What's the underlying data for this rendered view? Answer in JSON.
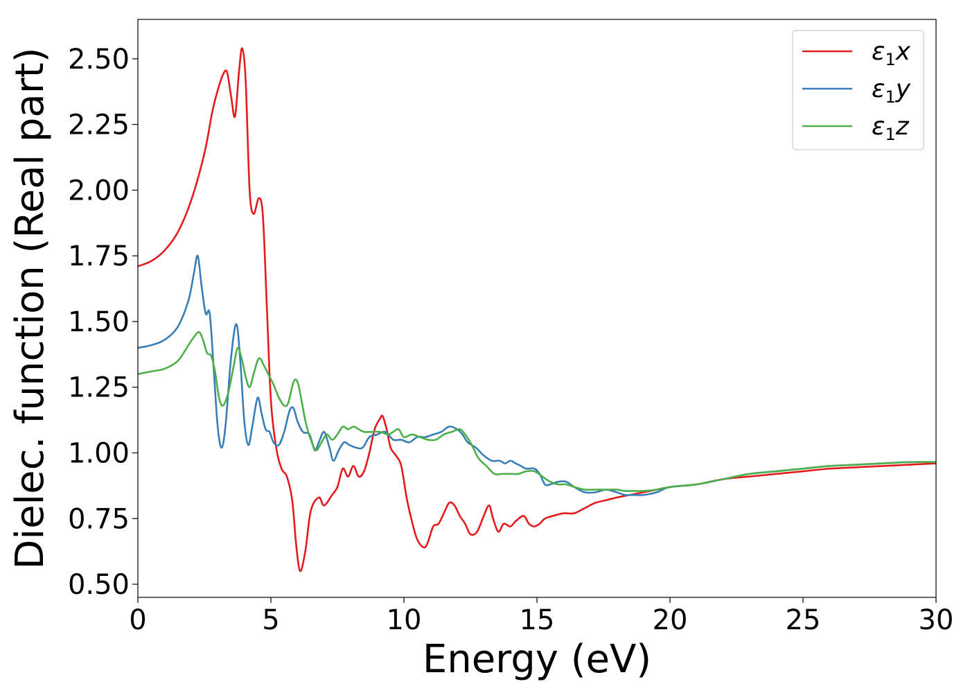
{
  "chart_data": {
    "type": "line",
    "title": "",
    "xlabel": "Energy (eV)",
    "ylabel": "Dielec. function (Real part)",
    "xlim": [
      0,
      30
    ],
    "ylim": [
      0.45,
      2.65
    ],
    "xticks": [
      0,
      5,
      10,
      15,
      20,
      25,
      30
    ],
    "yticks": [
      0.5,
      0.75,
      1.0,
      1.25,
      1.5,
      1.75,
      2.0,
      2.25,
      2.5
    ],
    "xtick_labels": [
      "0",
      "5",
      "10",
      "15",
      "20",
      "25",
      "30"
    ],
    "ytick_labels": [
      "0.50",
      "0.75",
      "1.00",
      "1.25",
      "1.50",
      "1.75",
      "2.00",
      "2.25",
      "2.50"
    ],
    "grid": false,
    "legend_position": "top-right",
    "series": [
      {
        "name": "ε₁x",
        "legend_base": "ε",
        "legend_sub": "1",
        "legend_suffix": "x",
        "color": "#e41a1c",
        "x": [
          0,
          0.5,
          1.0,
          1.5,
          2.0,
          2.5,
          2.8,
          3.0,
          3.2,
          3.35,
          3.5,
          3.65,
          3.8,
          3.92,
          4.05,
          4.2,
          4.35,
          4.55,
          4.7,
          4.85,
          5.0,
          5.2,
          5.4,
          5.6,
          5.8,
          5.95,
          6.1,
          6.3,
          6.5,
          6.8,
          7.0,
          7.3,
          7.5,
          7.7,
          7.9,
          8.1,
          8.3,
          8.5,
          8.7,
          8.9,
          9.1,
          9.2,
          9.35,
          9.5,
          9.7,
          9.9,
          10.1,
          10.3,
          10.5,
          10.75,
          10.9,
          11.1,
          11.3,
          11.5,
          11.7,
          11.9,
          12.1,
          12.3,
          12.5,
          12.75,
          13.0,
          13.2,
          13.35,
          13.55,
          13.75,
          14.0,
          14.2,
          14.5,
          14.7,
          14.9,
          15.1,
          15.3,
          15.6,
          16.0,
          16.4,
          16.8,
          17.2,
          17.6,
          18.0,
          18.5,
          19.0,
          19.5,
          20.0,
          21.0,
          22.0,
          23.0,
          24.0,
          25.0,
          26.0,
          27.0,
          28.0,
          29.0,
          30.0
        ],
        "y": [
          1.71,
          1.73,
          1.77,
          1.84,
          1.96,
          2.14,
          2.3,
          2.38,
          2.44,
          2.45,
          2.36,
          2.28,
          2.45,
          2.54,
          2.42,
          2.0,
          1.91,
          1.97,
          1.9,
          1.55,
          1.2,
          1.02,
          0.94,
          0.91,
          0.82,
          0.65,
          0.55,
          0.63,
          0.78,
          0.83,
          0.8,
          0.84,
          0.87,
          0.94,
          0.91,
          0.95,
          0.91,
          0.93,
          1.0,
          1.09,
          1.13,
          1.14,
          1.09,
          1.02,
          0.99,
          0.95,
          0.83,
          0.74,
          0.67,
          0.64,
          0.66,
          0.72,
          0.73,
          0.77,
          0.81,
          0.8,
          0.76,
          0.73,
          0.69,
          0.7,
          0.76,
          0.8,
          0.75,
          0.7,
          0.73,
          0.72,
          0.74,
          0.76,
          0.73,
          0.72,
          0.73,
          0.75,
          0.76,
          0.77,
          0.77,
          0.79,
          0.81,
          0.82,
          0.83,
          0.84,
          0.85,
          0.86,
          0.87,
          0.88,
          0.9,
          0.91,
          0.92,
          0.93,
          0.94,
          0.945,
          0.95,
          0.955,
          0.96
        ]
      },
      {
        "name": "ε₁y",
        "legend_base": "ε",
        "legend_sub": "1",
        "legend_suffix": "y",
        "color": "#377eb8",
        "x": [
          0,
          0.5,
          1.0,
          1.5,
          1.9,
          2.1,
          2.25,
          2.4,
          2.55,
          2.7,
          2.85,
          3.0,
          3.15,
          3.3,
          3.5,
          3.7,
          3.85,
          4.0,
          4.15,
          4.3,
          4.5,
          4.65,
          4.8,
          4.95,
          5.1,
          5.3,
          5.5,
          5.7,
          5.85,
          6.0,
          6.2,
          6.45,
          6.65,
          6.8,
          7.0,
          7.2,
          7.35,
          7.55,
          7.75,
          7.95,
          8.2,
          8.45,
          8.7,
          9.0,
          9.3,
          9.6,
          9.9,
          10.2,
          10.5,
          10.8,
          11.1,
          11.4,
          11.7,
          12.0,
          12.2,
          12.4,
          12.7,
          13.0,
          13.3,
          13.6,
          13.8,
          14.0,
          14.2,
          14.4,
          14.6,
          14.9,
          15.1,
          15.3,
          15.5,
          15.8,
          16.1,
          16.4,
          16.8,
          17.2,
          17.6,
          18.0,
          18.3,
          18.6,
          19.0,
          19.5,
          20.0,
          21.0,
          22.0,
          23.0,
          24.0,
          25.0,
          26.0,
          27.0,
          28.0,
          29.0,
          30.0
        ],
        "y": [
          1.4,
          1.41,
          1.43,
          1.48,
          1.58,
          1.68,
          1.75,
          1.63,
          1.53,
          1.53,
          1.32,
          1.1,
          1.02,
          1.11,
          1.36,
          1.49,
          1.35,
          1.12,
          1.03,
          1.1,
          1.21,
          1.15,
          1.09,
          1.08,
          1.04,
          1.03,
          1.08,
          1.16,
          1.17,
          1.12,
          1.08,
          1.07,
          1.01,
          1.04,
          1.08,
          1.02,
          0.97,
          1.01,
          1.04,
          1.03,
          1.02,
          1.02,
          1.06,
          1.07,
          1.08,
          1.05,
          1.05,
          1.04,
          1.06,
          1.06,
          1.07,
          1.08,
          1.1,
          1.09,
          1.07,
          1.04,
          1.02,
          0.99,
          0.97,
          0.97,
          0.96,
          0.97,
          0.96,
          0.95,
          0.94,
          0.94,
          0.92,
          0.88,
          0.88,
          0.89,
          0.89,
          0.87,
          0.85,
          0.85,
          0.86,
          0.85,
          0.84,
          0.84,
          0.84,
          0.85,
          0.87,
          0.88,
          0.9,
          0.92,
          0.93,
          0.94,
          0.95,
          0.955,
          0.96,
          0.965,
          0.965
        ]
      },
      {
        "name": "ε₁z",
        "legend_base": "ε",
        "legend_sub": "1",
        "legend_suffix": "z",
        "color": "#4daf4a",
        "x": [
          0,
          0.5,
          1.0,
          1.5,
          1.9,
          2.1,
          2.3,
          2.45,
          2.6,
          2.75,
          2.9,
          3.05,
          3.2,
          3.4,
          3.6,
          3.75,
          3.9,
          4.05,
          4.2,
          4.35,
          4.55,
          4.75,
          4.9,
          5.1,
          5.3,
          5.5,
          5.65,
          5.85,
          6.0,
          6.15,
          6.3,
          6.5,
          6.7,
          6.9,
          7.1,
          7.3,
          7.5,
          7.7,
          7.9,
          8.1,
          8.3,
          8.5,
          8.8,
          9.1,
          9.4,
          9.6,
          9.8,
          10.0,
          10.3,
          10.6,
          10.9,
          11.2,
          11.5,
          11.8,
          12.1,
          12.3,
          12.55,
          12.8,
          13.1,
          13.4,
          13.7,
          14.0,
          14.3,
          14.6,
          14.9,
          15.2,
          15.5,
          15.8,
          16.1,
          16.4,
          16.8,
          17.2,
          17.6,
          18.0,
          18.3,
          18.6,
          19.0,
          19.5,
          20.0,
          21.0,
          22.0,
          23.0,
          24.0,
          25.0,
          26.0,
          27.0,
          28.0,
          29.0,
          30.0
        ],
        "y": [
          1.3,
          1.31,
          1.32,
          1.35,
          1.41,
          1.44,
          1.46,
          1.43,
          1.38,
          1.37,
          1.31,
          1.21,
          1.18,
          1.23,
          1.33,
          1.4,
          1.36,
          1.29,
          1.25,
          1.3,
          1.36,
          1.33,
          1.3,
          1.26,
          1.21,
          1.18,
          1.19,
          1.27,
          1.27,
          1.2,
          1.12,
          1.05,
          1.01,
          1.04,
          1.07,
          1.05,
          1.07,
          1.1,
          1.09,
          1.1,
          1.09,
          1.08,
          1.08,
          1.08,
          1.07,
          1.08,
          1.09,
          1.06,
          1.07,
          1.06,
          1.05,
          1.05,
          1.07,
          1.08,
          1.09,
          1.07,
          1.03,
          0.98,
          0.95,
          0.92,
          0.92,
          0.92,
          0.92,
          0.93,
          0.93,
          0.91,
          0.89,
          0.88,
          0.88,
          0.87,
          0.86,
          0.86,
          0.86,
          0.86,
          0.855,
          0.855,
          0.855,
          0.86,
          0.87,
          0.88,
          0.9,
          0.92,
          0.93,
          0.94,
          0.95,
          0.955,
          0.96,
          0.965,
          0.965
        ]
      }
    ]
  }
}
